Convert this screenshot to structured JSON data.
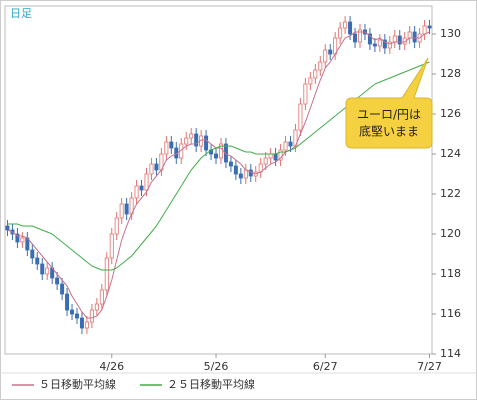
{
  "chart_data": {
    "type": "candlestick",
    "period_label": "日足",
    "annotation": [
      "ユーロ/円は",
      "底堅いまま"
    ],
    "categories": [
      null,
      null,
      null,
      null,
      null,
      null,
      null,
      null,
      null,
      null,
      null,
      null,
      null,
      null,
      null,
      null,
      null,
      null,
      null,
      null,
      null,
      "4/26",
      null,
      null,
      null,
      null,
      null,
      null,
      null,
      null,
      null,
      null,
      null,
      null,
      null,
      null,
      null,
      null,
      null,
      null,
      null,
      null,
      "5/26",
      null,
      null,
      null,
      null,
      null,
      null,
      null,
      null,
      null,
      null,
      null,
      null,
      null,
      null,
      null,
      null,
      null,
      null,
      null,
      null,
      null,
      "6/27",
      null,
      null,
      null,
      null,
      null,
      null,
      null,
      null,
      null,
      null,
      null,
      null,
      null,
      null,
      null,
      null,
      null,
      null,
      null,
      null,
      "7/27"
    ],
    "open": [
      120.4,
      120.2,
      120.0,
      119.6,
      119.8,
      119.2,
      118.8,
      118.5,
      118.0,
      118.3,
      117.8,
      117.5,
      117.0,
      116.2,
      116.0,
      115.8,
      115.3,
      115.6,
      116.2,
      116.5,
      117.2,
      118.8,
      120.0,
      120.8,
      121.5,
      121.0,
      121.8,
      122.4,
      122.2,
      123.0,
      123.5,
      123.2,
      124.0,
      124.6,
      124.3,
      123.8,
      124.5,
      124.8,
      125.0,
      124.4,
      124.9,
      124.2,
      124.0,
      123.8,
      124.5,
      123.6,
      123.4,
      123.0,
      122.8,
      123.2,
      122.9,
      123.1,
      123.5,
      123.8,
      124.0,
      123.7,
      124.2,
      124.6,
      124.4,
      125.2,
      126.5,
      127.5,
      127.8,
      128.2,
      128.6,
      129.2,
      129.0,
      129.8,
      130.3,
      130.6,
      130.0,
      129.6,
      130.2,
      130.0,
      129.5,
      129.4,
      129.7,
      129.3,
      129.6,
      129.9,
      129.5,
      129.8,
      130.1,
      129.6,
      130.0,
      130.4
    ],
    "high": [
      120.7,
      120.5,
      120.3,
      120.1,
      120.1,
      119.5,
      119.1,
      118.8,
      118.6,
      118.6,
      118.1,
      117.8,
      117.3,
      116.5,
      116.3,
      116.1,
      115.9,
      116.5,
      116.8,
      117.5,
      119.1,
      120.3,
      121.1,
      121.8,
      121.8,
      122.1,
      122.7,
      122.7,
      123.3,
      123.8,
      123.8,
      124.3,
      124.9,
      124.9,
      124.6,
      124.8,
      125.1,
      125.3,
      125.3,
      125.2,
      125.2,
      124.5,
      124.3,
      124.8,
      124.8,
      123.9,
      123.7,
      123.3,
      123.5,
      123.5,
      123.4,
      123.8,
      124.1,
      124.3,
      124.3,
      124.5,
      124.9,
      124.9,
      125.5,
      126.8,
      127.8,
      128.1,
      128.5,
      128.9,
      129.5,
      129.5,
      130.1,
      130.6,
      130.9,
      130.9,
      130.3,
      130.5,
      130.5,
      130.3,
      129.8,
      130.0,
      130.0,
      129.9,
      130.2,
      130.2,
      130.1,
      130.4,
      130.4,
      130.3,
      130.7,
      130.7
    ],
    "low": [
      119.9,
      119.7,
      119.3,
      119.3,
      118.9,
      118.5,
      118.2,
      117.7,
      117.7,
      117.5,
      117.2,
      116.7,
      115.9,
      115.7,
      115.5,
      115.0,
      115.0,
      115.3,
      115.9,
      116.2,
      116.9,
      118.5,
      119.7,
      120.5,
      120.7,
      120.7,
      121.5,
      121.9,
      121.9,
      122.7,
      122.9,
      122.9,
      123.7,
      124.0,
      123.5,
      123.5,
      124.2,
      124.5,
      124.1,
      124.1,
      123.9,
      123.7,
      123.5,
      123.5,
      123.3,
      123.1,
      122.7,
      122.5,
      122.5,
      122.6,
      122.6,
      122.8,
      123.2,
      123.5,
      123.4,
      123.4,
      123.9,
      124.1,
      124.1,
      124.9,
      126.2,
      127.2,
      127.5,
      127.9,
      128.3,
      128.7,
      128.7,
      129.5,
      130.0,
      129.7,
      129.3,
      129.3,
      129.7,
      129.2,
      129.1,
      129.1,
      129.0,
      129.0,
      129.3,
      129.2,
      129.2,
      129.5,
      129.3,
      129.3,
      129.7,
      130.0
    ],
    "close": [
      120.2,
      120.0,
      119.6,
      119.8,
      119.2,
      118.8,
      118.5,
      118.0,
      118.3,
      117.8,
      117.5,
      117.0,
      116.2,
      116.0,
      115.8,
      115.3,
      115.6,
      116.2,
      116.5,
      117.2,
      118.8,
      120.0,
      120.8,
      121.5,
      121.0,
      121.8,
      122.4,
      122.2,
      123.0,
      123.5,
      123.2,
      124.0,
      124.6,
      124.3,
      123.8,
      124.5,
      124.8,
      125.0,
      124.4,
      124.9,
      124.2,
      124.0,
      123.8,
      124.5,
      123.6,
      123.4,
      123.0,
      122.8,
      123.2,
      122.9,
      123.1,
      123.5,
      123.8,
      124.0,
      123.7,
      124.2,
      124.6,
      124.4,
      125.2,
      126.5,
      127.5,
      127.8,
      128.2,
      128.6,
      129.2,
      129.0,
      129.8,
      130.3,
      130.6,
      130.0,
      129.6,
      130.2,
      130.0,
      129.5,
      129.4,
      129.7,
      129.3,
      129.6,
      129.9,
      129.5,
      129.8,
      130.1,
      129.6,
      130.0,
      130.4,
      130.3
    ],
    "up_color": "#e0736f",
    "down_color": "#3b6db3",
    "series": [
      {
        "name": "５日移動平均線",
        "color": "#c9708a",
        "values": [
          120.2,
          120.1,
          119.9,
          119.9,
          119.8,
          119.5,
          119.2,
          118.9,
          118.6,
          118.3,
          118.0,
          117.7,
          117.4,
          116.9,
          116.5,
          116.1,
          115.8,
          115.8,
          115.9,
          116.2,
          116.9,
          117.7,
          118.7,
          119.7,
          120.4,
          121.0,
          121.5,
          121.8,
          122.1,
          122.6,
          122.9,
          123.2,
          123.7,
          123.9,
          124.0,
          124.2,
          124.4,
          124.5,
          124.5,
          124.7,
          124.7,
          124.5,
          124.3,
          124.3,
          124.0,
          123.9,
          123.7,
          123.5,
          123.2,
          123.1,
          123.0,
          123.1,
          123.3,
          123.5,
          123.6,
          123.8,
          124.1,
          124.2,
          124.4,
          125.0,
          125.6,
          126.3,
          127.0,
          127.7,
          128.3,
          128.6,
          129.0,
          129.4,
          129.8,
          129.9,
          130.1,
          130.1,
          130.1,
          129.9,
          129.7,
          129.8,
          129.6,
          129.5,
          129.6,
          129.6,
          129.6,
          129.8,
          129.8,
          129.8,
          130.0,
          130.1
        ]
      },
      {
        "name": "２５日移動平均線",
        "color": "#3fae49",
        "values": [
          120.5,
          120.5,
          120.5,
          120.4,
          120.4,
          120.4,
          120.3,
          120.2,
          120.1,
          120.0,
          119.8,
          119.6,
          119.4,
          119.2,
          119.0,
          118.8,
          118.6,
          118.4,
          118.3,
          118.2,
          118.2,
          118.2,
          118.3,
          118.5,
          118.7,
          118.9,
          119.2,
          119.5,
          119.8,
          120.1,
          120.4,
          120.8,
          121.2,
          121.6,
          122.0,
          122.4,
          122.8,
          123.2,
          123.5,
          123.8,
          124.0,
          124.2,
          124.3,
          124.4,
          124.4,
          124.4,
          124.3,
          124.2,
          124.1,
          124.1,
          124.0,
          124.0,
          124.0,
          124.0,
          124.0,
          124.1,
          124.1,
          124.2,
          124.3,
          124.5,
          124.7,
          124.9,
          125.1,
          125.3,
          125.5,
          125.7,
          125.9,
          126.1,
          126.3,
          126.5,
          126.7,
          126.9,
          127.1,
          127.3,
          127.5,
          127.6,
          127.7,
          127.8,
          127.9,
          128.0,
          128.1,
          128.2,
          128.3,
          128.4,
          128.5,
          128.6
        ]
      }
    ],
    "ylim": [
      114,
      131.3
    ],
    "yticks": [
      114,
      116,
      118,
      120,
      122,
      124,
      126,
      128,
      130
    ]
  }
}
